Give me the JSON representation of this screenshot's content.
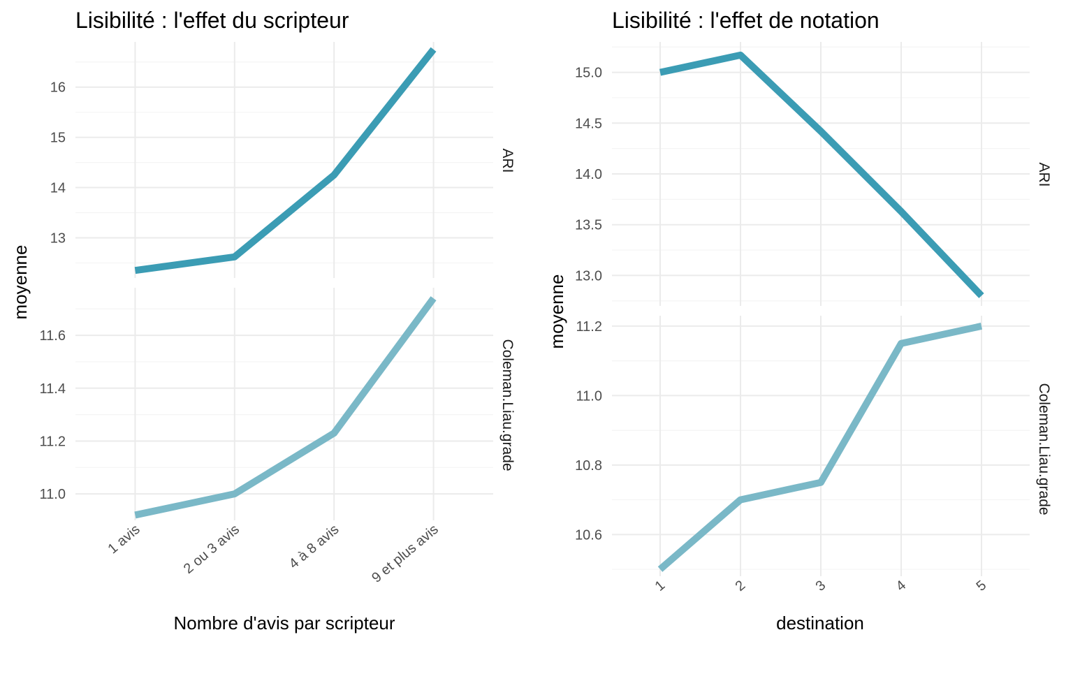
{
  "colors": {
    "ari": "#3b9cb4",
    "coleman": "#7ab8c7",
    "grid_major": "#ebebeb",
    "grid_minor": "#f4f4f4",
    "text": "#000000",
    "tick_text": "#4d4d4d"
  },
  "chart_data": [
    {
      "type": "line",
      "title": "Lisibilité : l'effet du scripteur",
      "xlabel": "Nombre d'avis par scripteur",
      "ylabel": "moyenne",
      "categories": [
        "1 avis",
        "2 ou 3 avis",
        "4 à 8 avis",
        "9 et plus avis"
      ],
      "grid": true,
      "facets": [
        {
          "label": "ARI",
          "color_key": "ari",
          "ylim": [
            12.2,
            16.9
          ],
          "ticks": [
            13,
            14,
            15,
            16
          ],
          "values": [
            12.35,
            12.62,
            14.25,
            16.75
          ]
        },
        {
          "label": "Coleman.Liau.grade",
          "color_key": "coleman",
          "ylim": [
            10.9,
            11.78
          ],
          "ticks": [
            11.0,
            11.2,
            11.4,
            11.6
          ],
          "values": [
            10.92,
            11.0,
            11.23,
            11.74
          ]
        }
      ]
    },
    {
      "type": "line",
      "title": "Lisibilité : l'effet de notation",
      "xlabel": "destination",
      "ylabel": "moyenne",
      "categories": [
        "1",
        "2",
        "3",
        "4",
        "5"
      ],
      "grid": true,
      "facets": [
        {
          "label": "ARI",
          "color_key": "ari",
          "ylim": [
            12.7,
            15.3
          ],
          "ticks": [
            13.0,
            13.5,
            14.0,
            14.5,
            15.0
          ],
          "values": [
            15.0,
            15.17,
            14.42,
            13.63,
            12.8
          ]
        },
        {
          "label": "Coleman.Liau.grade",
          "color_key": "coleman",
          "ylim": [
            10.48,
            11.23
          ],
          "ticks": [
            10.6,
            10.8,
            11.0,
            11.2
          ],
          "values": [
            10.5,
            10.7,
            10.75,
            11.15,
            11.2
          ]
        }
      ]
    }
  ]
}
